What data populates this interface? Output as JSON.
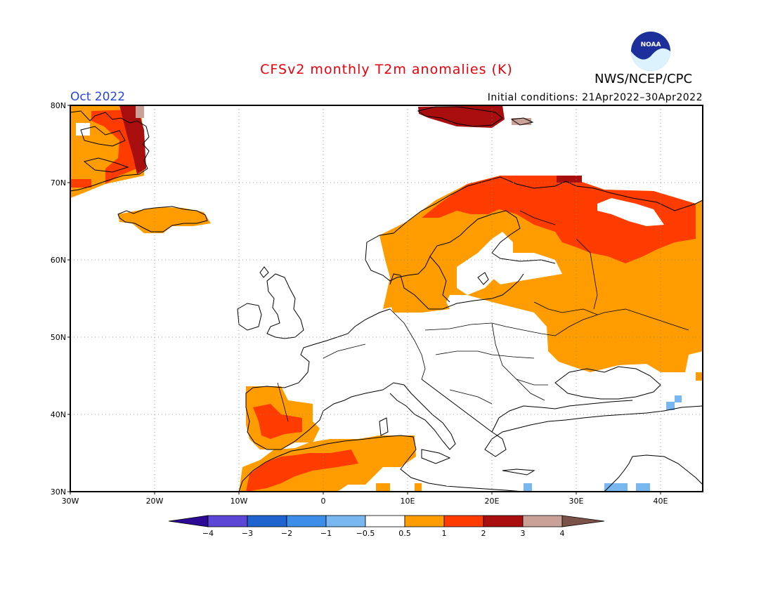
{
  "header": {
    "title": "CFSv2 monthly T2m anomalies (K)",
    "agency": "NWS/NCEP/CPC",
    "month": "Oct 2022",
    "initial_conditions": "Initial conditions: 21Apr2022–30Apr2022",
    "logo_text": "NOAA"
  },
  "map": {
    "lon_range": [
      -30,
      45
    ],
    "lat_range": [
      30,
      80
    ],
    "grid_dashed": true,
    "lat_labels": [
      "30N",
      "40N",
      "50N",
      "60N",
      "70N",
      "80N"
    ],
    "lon_labels": [
      "30W",
      "20W",
      "10W",
      "0",
      "10E",
      "20E",
      "30E",
      "40E"
    ]
  },
  "colorbar": {
    "labels": [
      "−4",
      "−3",
      "−2",
      "−1",
      "−0.5",
      "0.5",
      "1",
      "2",
      "3",
      "4"
    ],
    "colors": [
      "#2c0a96",
      "#5b46d6",
      "#1f63cf",
      "#3d8ee8",
      "#78b7f0",
      "#ffffff",
      "#ff9d00",
      "#ff3c00",
      "#a80e0e",
      "#c9a197",
      "#7a5248"
    ]
  },
  "anomaly_regions": [
    {
      "name": "greenland",
      "level": "0.5-1"
    },
    {
      "name": "iceland",
      "level": "0.5-1"
    },
    {
      "name": "svalbard",
      "level": "2-3"
    },
    {
      "name": "scandinavia",
      "level": "0.5-1"
    },
    {
      "name": "northern-fennoscandia",
      "level": "1-2"
    },
    {
      "name": "western-russia",
      "level": "0.5-1"
    },
    {
      "name": "northwest-russia",
      "level": "1-2"
    },
    {
      "name": "iberia",
      "level": "0.5-1"
    },
    {
      "name": "central-spain",
      "level": "1-2"
    },
    {
      "name": "north-africa",
      "level": "0.5-1"
    },
    {
      "name": "morocco-algeria",
      "level": "1-2"
    },
    {
      "name": "eastern-mediterranean",
      "level": "-1--0.5"
    }
  ]
}
